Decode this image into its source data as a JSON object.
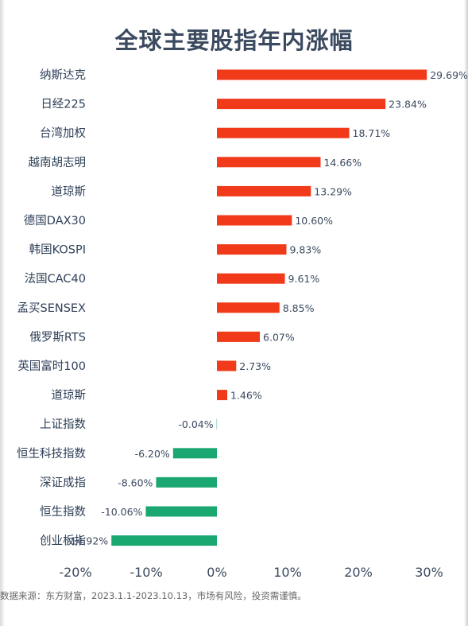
{
  "chart_data": {
    "type": "bar",
    "orientation": "horizontal",
    "title": "全球主要股指年内涨幅",
    "categories": [
      "纳斯达克",
      "日经225",
      "台湾加权",
      "越南胡志明",
      "道琼斯",
      "德国DAX30",
      "韩国KOSPI",
      "法国CAC40",
      "孟买SENSEX",
      "俄罗斯RTS",
      "英国富时100",
      "道琼斯",
      "上证指数",
      "恒生科技指数",
      "深证成指",
      "恒生指数",
      "创业板指"
    ],
    "values": [
      29.69,
      23.84,
      18.71,
      14.66,
      13.29,
      10.6,
      9.83,
      9.61,
      8.85,
      6.07,
      2.73,
      1.46,
      -0.04,
      -6.2,
      -8.6,
      -10.06,
      -14.92
    ],
    "data_labels": [
      "29.69%",
      "23.84%",
      "18.71%",
      "14.66%",
      "13.29%",
      "10.60%",
      "9.83%",
      "9.61%",
      "8.85%",
      "6.07%",
      "2.73%",
      "1.46%",
      "-0.04%",
      "-6.20%",
      "-8.60%",
      "-10.06%",
      "-14.92%"
    ],
    "x_ticks": [
      "-20%",
      "-10%",
      "0%",
      "10%",
      "20%",
      "30%"
    ],
    "xlim": [
      -20,
      30
    ],
    "xlabel": "",
    "ylabel": "",
    "grid": false,
    "legend": "none",
    "colors": {
      "positive": "#f03a1a",
      "negative": "#1aa870"
    }
  },
  "source_note": "数据来源：东方财富，2023.1.1-2023.10.13，市场有风险，投资需谨慎。"
}
